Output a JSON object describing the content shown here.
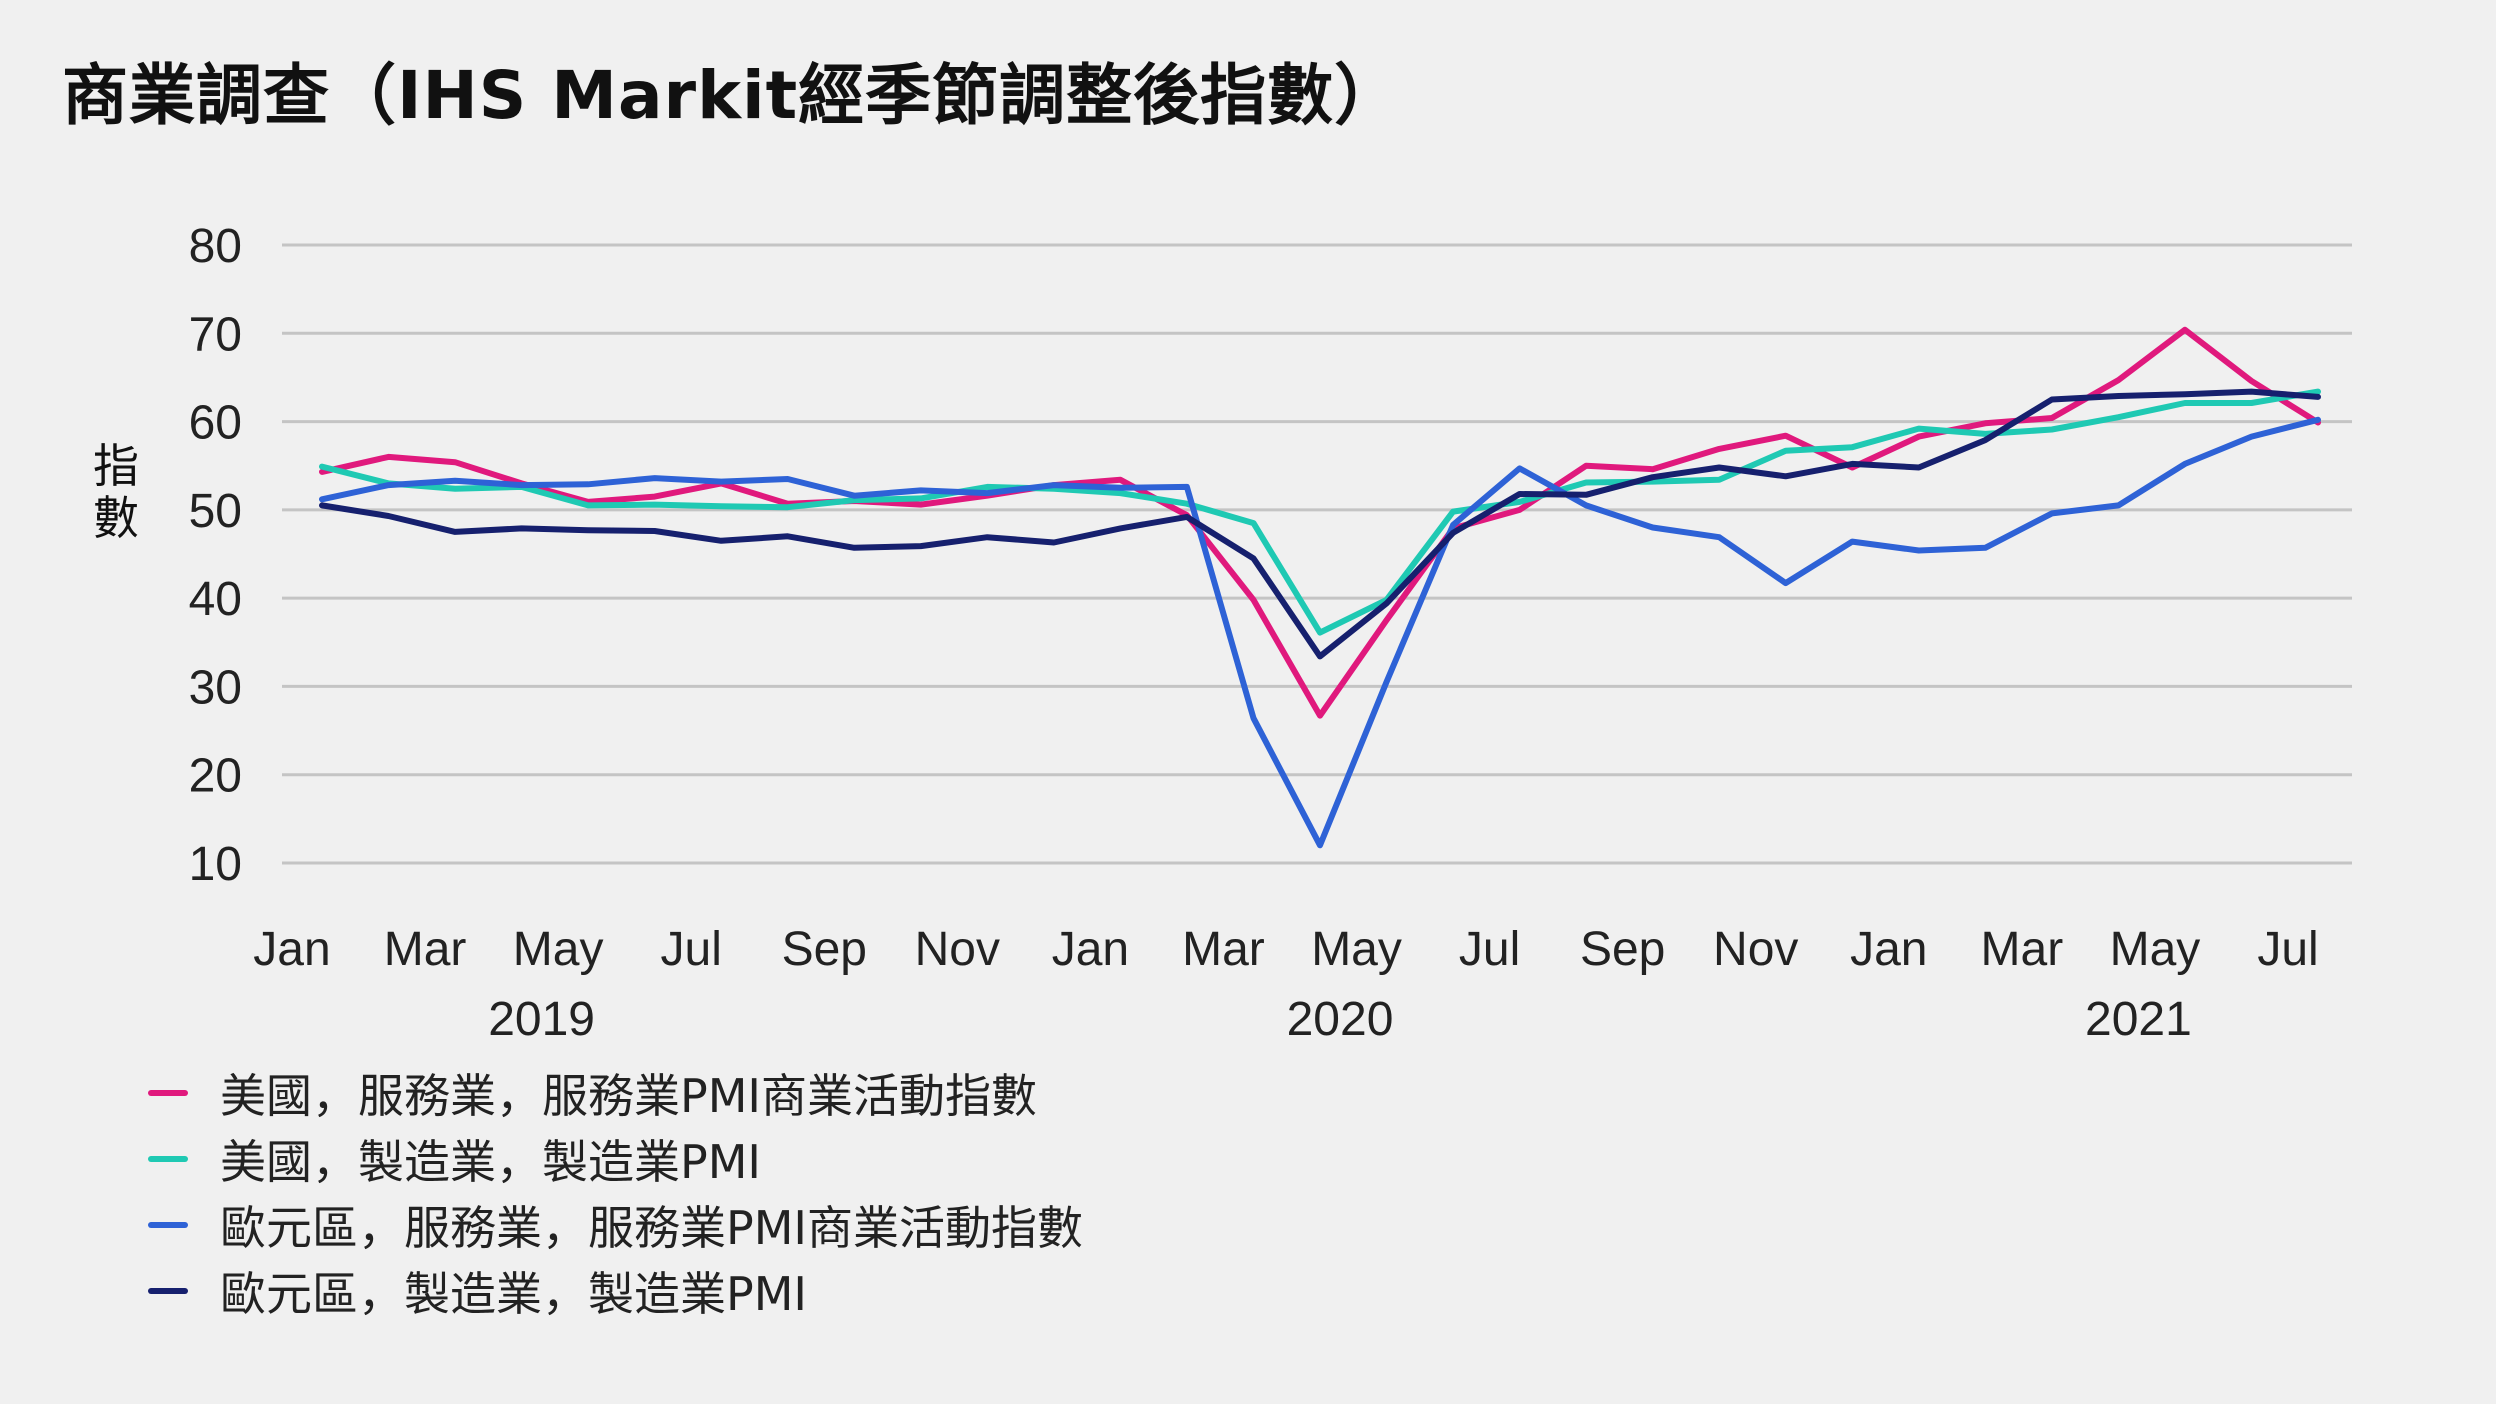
{
  "chart_data": {
    "type": "line",
    "title": "商業調查（IHS Markit經季節調整後指數）",
    "ylabel": "指數",
    "ylim": [
      10,
      80
    ],
    "yticks": [
      80,
      70,
      60,
      50,
      40,
      30,
      20,
      10
    ],
    "x": [
      "2019-01",
      "2019-02",
      "2019-03",
      "2019-04",
      "2019-05",
      "2019-06",
      "2019-07",
      "2019-08",
      "2019-09",
      "2019-10",
      "2019-11",
      "2019-12",
      "2020-01",
      "2020-02",
      "2020-03",
      "2020-04",
      "2020-05",
      "2020-06",
      "2020-07",
      "2020-08",
      "2020-09",
      "2020-10",
      "2020-11",
      "2020-12",
      "2021-01",
      "2021-02",
      "2021-03",
      "2021-04",
      "2021-05",
      "2021-06",
      "2021-07"
    ],
    "xticks": [
      {
        "label": "Jan",
        "index": 0
      },
      {
        "label": "Mar",
        "index": 2
      },
      {
        "label": "May",
        "index": 4
      },
      {
        "label": "Jul",
        "index": 6
      },
      {
        "label": "Sep",
        "index": 8
      },
      {
        "label": "Nov",
        "index": 10
      },
      {
        "label": "Jan",
        "index": 12
      },
      {
        "label": "Mar",
        "index": 14
      },
      {
        "label": "May",
        "index": 16
      },
      {
        "label": "Jul",
        "index": 18
      },
      {
        "label": "Sep",
        "index": 20
      },
      {
        "label": "Nov",
        "index": 22
      },
      {
        "label": "Jan",
        "index": 24
      },
      {
        "label": "Mar",
        "index": 26
      },
      {
        "label": "May",
        "index": 28
      },
      {
        "label": "Jul",
        "index": 30
      }
    ],
    "year_labels": [
      {
        "label": "2019",
        "index": 3
      },
      {
        "label": "2020",
        "index": 15
      },
      {
        "label": "2021",
        "index": 27
      }
    ],
    "grid": true,
    "legend_position": "bottom-left",
    "series": [
      {
        "name": "美國，服務業，服務業PMI商業活動指數",
        "color": "#e0197d",
        "values": [
          54.3,
          56.0,
          55.4,
          53.0,
          50.9,
          51.5,
          53.0,
          50.7,
          51.0,
          50.6,
          51.6,
          52.8,
          53.4,
          49.4,
          39.8,
          26.7,
          37.5,
          47.9,
          50.0,
          55.0,
          54.6,
          56.9,
          58.4,
          54.8,
          58.3,
          59.8,
          60.4,
          64.7,
          70.4,
          64.6,
          59.9
        ]
      },
      {
        "name": "美國，製造業，製造業PMI",
        "color": "#1fc9b3",
        "values": [
          54.9,
          53.0,
          52.4,
          52.6,
          50.5,
          50.6,
          50.4,
          50.3,
          51.1,
          51.3,
          52.6,
          52.4,
          51.9,
          50.7,
          48.5,
          36.1,
          39.8,
          49.8,
          50.9,
          53.1,
          53.2,
          53.4,
          56.7,
          57.1,
          59.2,
          58.6,
          59.1,
          60.5,
          62.1,
          62.1,
          63.4
        ]
      },
      {
        "name": "歐元區，服務業，服務業PMI商業活動指數",
        "color": "#2e62d6",
        "values": [
          51.2,
          52.8,
          53.3,
          52.8,
          52.9,
          53.6,
          53.2,
          53.5,
          51.6,
          52.2,
          51.9,
          52.8,
          52.5,
          52.6,
          26.4,
          12.0,
          30.5,
          48.3,
          54.7,
          50.5,
          48.0,
          46.9,
          41.7,
          46.4,
          45.4,
          45.7,
          49.6,
          50.5,
          55.2,
          58.3,
          60.2
        ]
      },
      {
        "name": "歐元區，製造業，製造業PMI",
        "color": "#16206e",
        "values": [
          50.5,
          49.3,
          47.5,
          47.9,
          47.7,
          47.6,
          46.5,
          47.0,
          45.7,
          45.9,
          46.9,
          46.3,
          47.9,
          49.2,
          44.5,
          33.4,
          39.4,
          47.4,
          51.8,
          51.7,
          53.7,
          54.8,
          53.8,
          55.2,
          54.8,
          57.9,
          62.5,
          62.9,
          63.1,
          63.4,
          62.8
        ]
      }
    ]
  }
}
